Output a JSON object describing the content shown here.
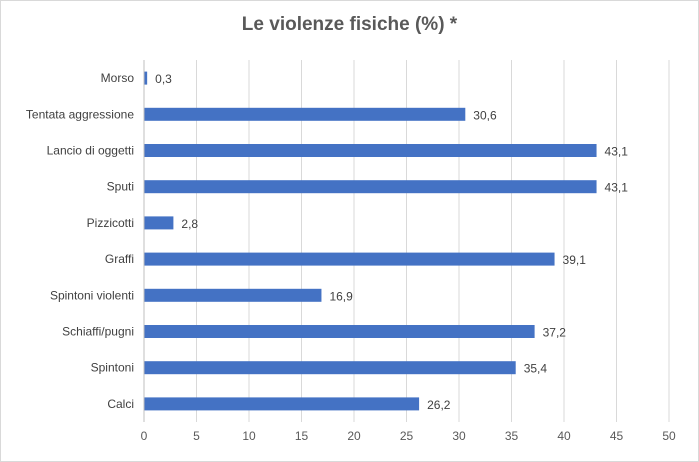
{
  "chart_data": {
    "type": "bar",
    "orientation": "horizontal",
    "title": "Le violenze fisiche (%) *",
    "categories": [
      "Morso",
      "Tentata aggressione",
      "Lancio di oggetti",
      "Sputi",
      "Pizzicotti",
      "Graffi",
      "Spintoni violenti",
      "Schiaffi/pugni",
      "Spintoni",
      "Calci"
    ],
    "values": [
      0.3,
      30.6,
      43.1,
      43.1,
      2.8,
      39.1,
      16.9,
      37.2,
      35.4,
      26.2
    ],
    "value_labels": [
      "0,3",
      "30,6",
      "43,1",
      "43,1",
      "2,8",
      "39,1",
      "16,9",
      "37,2",
      "35,4",
      "26,2"
    ],
    "xlim": [
      0,
      50
    ],
    "xticks": [
      "0",
      "5",
      "10",
      "15",
      "20",
      "25",
      "30",
      "35",
      "40",
      "45",
      "50"
    ],
    "grid": true,
    "legend": "none",
    "bar_color": "#4472c4",
    "grid_color": "#d9d9d9"
  }
}
